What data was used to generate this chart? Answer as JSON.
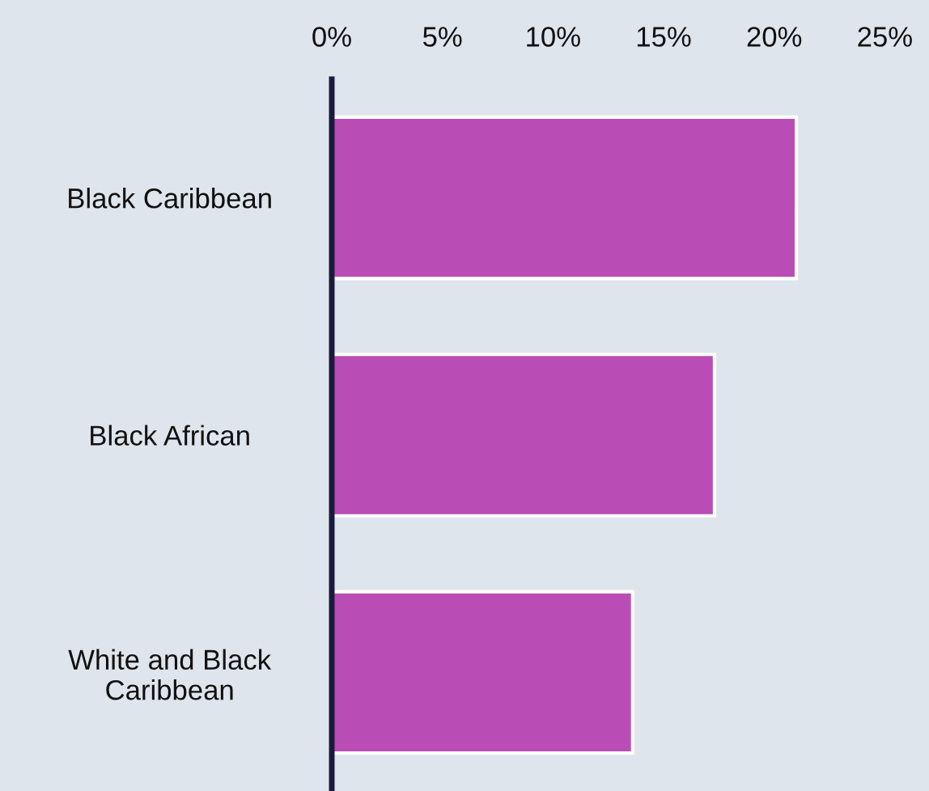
{
  "chart_data": {
    "type": "bar",
    "orientation": "horizontal",
    "categories": [
      "Black Caribbean",
      "Black African",
      "White and Black\nCaribbean"
    ],
    "values": [
      21.0,
      17.3,
      13.6
    ],
    "color": "#b94db5",
    "xlim": [
      0,
      25
    ],
    "xticks": [
      {
        "value": 0,
        "label": "0%"
      },
      {
        "value": 5,
        "label": "5%"
      },
      {
        "value": 10,
        "label": "10%"
      },
      {
        "value": 15,
        "label": "15%"
      },
      {
        "value": 20,
        "label": "20%"
      },
      {
        "value": 25,
        "label": "25%"
      }
    ],
    "grid": false,
    "legend": false
  }
}
